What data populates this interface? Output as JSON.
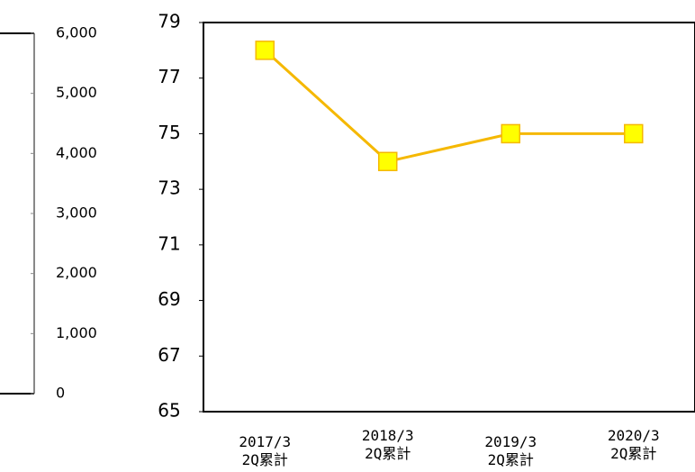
{
  "chart_data": [
    {
      "type": "axis",
      "ylim": [
        0,
        6000
      ],
      "yticks": [
        0,
        {
          "value": 1000,
          "label": "1,000"
        },
        {
          "value": 2000,
          "label": "2,000"
        },
        {
          "value": 3000,
          "label": "3,000"
        },
        {
          "value": 4000,
          "label": "4,000"
        },
        {
          "value": 5000,
          "label": "5,000"
        },
        {
          "value": 6000,
          "label": "6,000"
        }
      ]
    },
    {
      "type": "line",
      "categories": [
        "2017/3\n2Q累計",
        "2018/3\n2Q累計",
        "2019/3\n2Q累計",
        "2020/3\n2Q累計"
      ],
      "series": [
        {
          "name": "",
          "color": "#f5b800",
          "marker_color": "#ffff00",
          "values": [
            78,
            74,
            75,
            75
          ]
        }
      ],
      "ylim": [
        65,
        79
      ],
      "yticks": [
        65,
        67,
        69,
        71,
        73,
        75,
        77,
        79
      ]
    }
  ]
}
